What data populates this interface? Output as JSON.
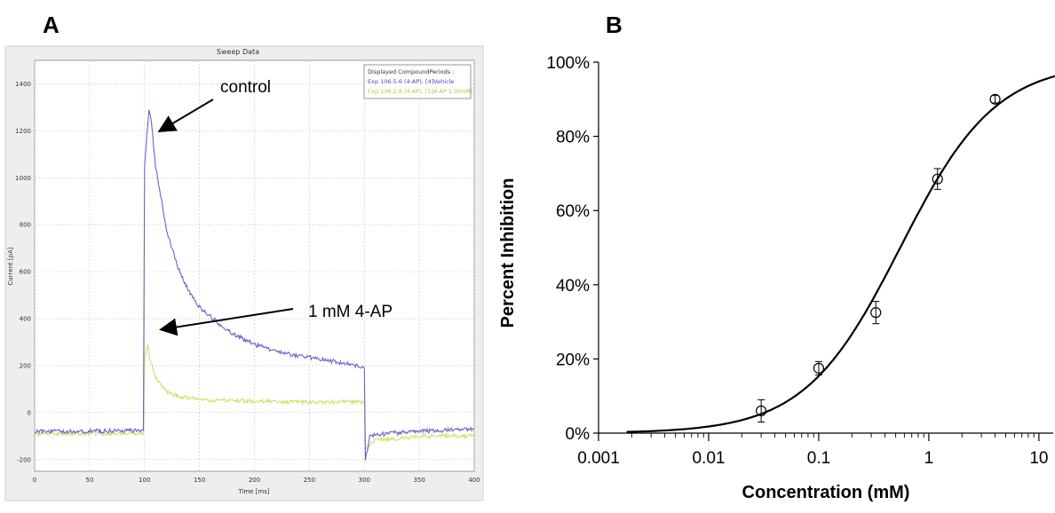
{
  "panels": {
    "a_label": "A",
    "b_label": "B"
  },
  "chart_data": [
    {
      "type": "line",
      "title": "Sweep Data",
      "xlabel": "Time [ms]",
      "ylabel": "Current [pA]",
      "xlim": [
        0,
        400
      ],
      "ylim": [
        -250,
        1500
      ],
      "x_ticks": [
        "0",
        "50",
        "100",
        "150",
        "200",
        "250",
        "300",
        "350",
        "400"
      ],
      "y_ticks": [
        "-200",
        "0",
        "200",
        "400",
        "600",
        "800",
        "1000",
        "1200",
        "1400"
      ],
      "grid": true,
      "legend": {
        "title": "Displayed CompoundPeriods :",
        "entries": [
          "Exp 106.5.6 (4-AP), [4]Vehicle",
          "Exp 106.2.6 (4-AP), [5]4-AP 1.0(mM)"
        ],
        "placement": "top-right"
      },
      "annotations": [
        "control",
        "1 mM 4-AP"
      ],
      "series": [
        {
          "color": "#6a63c8",
          "x": [
            0,
            50,
            99,
            100,
            104,
            106,
            110,
            120,
            130,
            140,
            150,
            175,
            200,
            225,
            250,
            275,
            299,
            300,
            301,
            305,
            320,
            350,
            400
          ],
          "y": [
            -80,
            -80,
            -75,
            1050,
            1290,
            1250,
            1050,
            780,
            620,
            520,
            450,
            350,
            290,
            255,
            235,
            215,
            195,
            190,
            -200,
            -100,
            -90,
            -80,
            -70
          ]
        },
        {
          "color": "#d4de6a",
          "x": [
            0,
            50,
            99,
            100,
            103,
            105,
            110,
            120,
            130,
            150,
            200,
            250,
            299,
            300,
            301,
            310,
            350,
            400
          ],
          "y": [
            -90,
            -90,
            -88,
            230,
            290,
            220,
            150,
            90,
            70,
            55,
            48,
            45,
            45,
            44,
            -160,
            -120,
            -100,
            -100
          ]
        }
      ]
    },
    {
      "type": "scatter",
      "xlabel": "Concentration (mM)",
      "ylabel": "Percent Inhibition",
      "x_scale": "log",
      "xlim": [
        0.001,
        14
      ],
      "ylim": [
        0,
        100
      ],
      "x_ticks": [
        "0.001",
        "0.01",
        "0.1",
        "1",
        "10"
      ],
      "y_ticks": [
        "0%",
        "20%",
        "40%",
        "60%",
        "80%",
        "100%"
      ],
      "points": [
        {
          "x": 0.03,
          "y": 6,
          "err": 3
        },
        {
          "x": 0.1,
          "y": 17.5,
          "err": 1.8
        },
        {
          "x": 0.33,
          "y": 32.5,
          "err": 3
        },
        {
          "x": 1.2,
          "y": 68.5,
          "err": 2.8
        },
        {
          "x": 4.0,
          "y": 90,
          "err": 1
        }
      ],
      "fit": {
        "type": "hill",
        "ic50": 0.55,
        "hill": 1.0,
        "top": 100,
        "bottom": 0
      }
    }
  ]
}
